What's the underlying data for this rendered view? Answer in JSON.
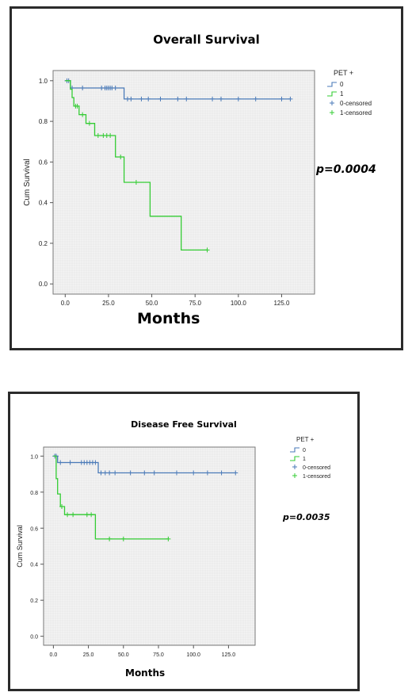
{
  "chart_data": [
    {
      "type": "line",
      "title": "Overall Survival",
      "xlabel": "Months",
      "ylabel": "Cum Survival",
      "xlim": [
        -7,
        144
      ],
      "ylim": [
        -0.05,
        1.05
      ],
      "xticks": [
        "0.0",
        "25.0",
        "50.0",
        "75.0",
        "100.0",
        "125.0"
      ],
      "xtick_values": [
        0,
        25,
        50,
        75,
        100,
        125
      ],
      "yticks": [
        "0.0",
        "0.2",
        "0.4",
        "0.6",
        "0.8",
        "1.0"
      ],
      "ytick_values": [
        0,
        0.2,
        0.4,
        0.6,
        0.8,
        1.0
      ],
      "grid": true,
      "legend_title": "PET +",
      "legend_position": "right",
      "annotation": "p=0.0004",
      "series": [
        {
          "name": "0",
          "color": "#4a7ab8",
          "steps": [
            [
              0,
              1.0
            ],
            [
              3,
              1.0
            ],
            [
              3,
              0.964
            ],
            [
              34,
              0.964
            ],
            [
              34,
              0.91
            ],
            [
              130,
              0.91
            ]
          ],
          "censored": [
            [
              1,
              1.0
            ],
            [
              2,
              1.0
            ],
            [
              4,
              0.964
            ],
            [
              10,
              0.964
            ],
            [
              21,
              0.964
            ],
            [
              23,
              0.964
            ],
            [
              24,
              0.964
            ],
            [
              25,
              0.964
            ],
            [
              26,
              0.964
            ],
            [
              27,
              0.964
            ],
            [
              29,
              0.964
            ],
            [
              36,
              0.91
            ],
            [
              38,
              0.91
            ],
            [
              44,
              0.91
            ],
            [
              48,
              0.91
            ],
            [
              55,
              0.91
            ],
            [
              65,
              0.91
            ],
            [
              70,
              0.91
            ],
            [
              85,
              0.91
            ],
            [
              90,
              0.91
            ],
            [
              100,
              0.91
            ],
            [
              110,
              0.91
            ],
            [
              125,
              0.91
            ],
            [
              130,
              0.91
            ]
          ]
        },
        {
          "name": "1",
          "color": "#33cc33",
          "steps": [
            [
              0,
              1.0
            ],
            [
              3,
              1.0
            ],
            [
              3,
              0.958
            ],
            [
              4,
              0.958
            ],
            [
              4,
              0.917
            ],
            [
              5,
              0.917
            ],
            [
              5,
              0.875
            ],
            [
              8,
              0.875
            ],
            [
              8,
              0.833
            ],
            [
              12,
              0.833
            ],
            [
              12,
              0.79
            ],
            [
              17,
              0.79
            ],
            [
              17,
              0.73
            ],
            [
              29,
              0.73
            ],
            [
              29,
              0.625
            ],
            [
              34,
              0.625
            ],
            [
              34,
              0.5
            ],
            [
              49,
              0.5
            ],
            [
              49,
              0.333
            ],
            [
              67,
              0.333
            ],
            [
              67,
              0.167
            ],
            [
              82,
              0.167
            ]
          ],
          "censored": [
            [
              6,
              0.875
            ],
            [
              7,
              0.875
            ],
            [
              10,
              0.833
            ],
            [
              14,
              0.79
            ],
            [
              19,
              0.73
            ],
            [
              22,
              0.73
            ],
            [
              24,
              0.73
            ],
            [
              26,
              0.73
            ],
            [
              32,
              0.625
            ],
            [
              41,
              0.5
            ],
            [
              82,
              0.167
            ]
          ]
        }
      ],
      "legend": [
        {
          "label": "0",
          "kind": "step",
          "color": "#4a7ab8"
        },
        {
          "label": "1",
          "kind": "step",
          "color": "#33cc33"
        },
        {
          "label": "0-censored",
          "kind": "plus",
          "color": "#4a7ab8"
        },
        {
          "label": "1-censored",
          "kind": "plus",
          "color": "#33cc33"
        }
      ]
    },
    {
      "type": "line",
      "title": "Disease Free Survival",
      "xlabel": "Months",
      "ylabel": "Cum Survival",
      "xlim": [
        -7,
        144
      ],
      "ylim": [
        -0.05,
        1.05
      ],
      "xticks": [
        "0.0",
        "25.0",
        "50.0",
        "75.0",
        "100.0",
        "125.0"
      ],
      "xtick_values": [
        0,
        25,
        50,
        75,
        100,
        125
      ],
      "yticks": [
        "0.0",
        "0.2",
        "0.4",
        "0.6",
        "0.8",
        "1.0"
      ],
      "ytick_values": [
        0,
        0.2,
        0.4,
        0.6,
        0.8,
        1.0
      ],
      "grid": true,
      "legend_title": "PET +",
      "legend_position": "right",
      "annotation": "p=0.0035",
      "series": [
        {
          "name": "0",
          "color": "#4a7ab8",
          "steps": [
            [
              0,
              1.0
            ],
            [
              3,
              1.0
            ],
            [
              3,
              0.964
            ],
            [
              32,
              0.964
            ],
            [
              32,
              0.907
            ],
            [
              130,
              0.907
            ]
          ],
          "censored": [
            [
              1,
              1.0
            ],
            [
              2,
              1.0
            ],
            [
              5,
              0.964
            ],
            [
              12,
              0.964
            ],
            [
              20,
              0.964
            ],
            [
              22,
              0.964
            ],
            [
              24,
              0.964
            ],
            [
              26,
              0.964
            ],
            [
              28,
              0.964
            ],
            [
              30,
              0.964
            ],
            [
              34,
              0.907
            ],
            [
              37,
              0.907
            ],
            [
              40,
              0.907
            ],
            [
              44,
              0.907
            ],
            [
              55,
              0.907
            ],
            [
              65,
              0.907
            ],
            [
              72,
              0.907
            ],
            [
              88,
              0.907
            ],
            [
              100,
              0.907
            ],
            [
              110,
              0.907
            ],
            [
              120,
              0.907
            ],
            [
              130,
              0.907
            ]
          ]
        },
        {
          "name": "1",
          "color": "#33cc33",
          "steps": [
            [
              0,
              1.0
            ],
            [
              2,
              1.0
            ],
            [
              2,
              0.875
            ],
            [
              3,
              0.875
            ],
            [
              3,
              0.79
            ],
            [
              5,
              0.79
            ],
            [
              5,
              0.72
            ],
            [
              8,
              0.72
            ],
            [
              8,
              0.675
            ],
            [
              30,
              0.675
            ],
            [
              30,
              0.54
            ],
            [
              82,
              0.54
            ]
          ],
          "censored": [
            [
              6,
              0.72
            ],
            [
              10,
              0.675
            ],
            [
              14,
              0.675
            ],
            [
              24,
              0.675
            ],
            [
              27,
              0.675
            ],
            [
              40,
              0.54
            ],
            [
              50,
              0.54
            ],
            [
              82,
              0.54
            ]
          ]
        }
      ],
      "legend": [
        {
          "label": "0",
          "kind": "step",
          "color": "#4a7ab8"
        },
        {
          "label": "1",
          "kind": "step",
          "color": "#33cc33"
        },
        {
          "label": "0-censored",
          "kind": "plus",
          "color": "#4a7ab8"
        },
        {
          "label": "1-censored",
          "kind": "plus",
          "color": "#33cc33"
        }
      ]
    }
  ]
}
